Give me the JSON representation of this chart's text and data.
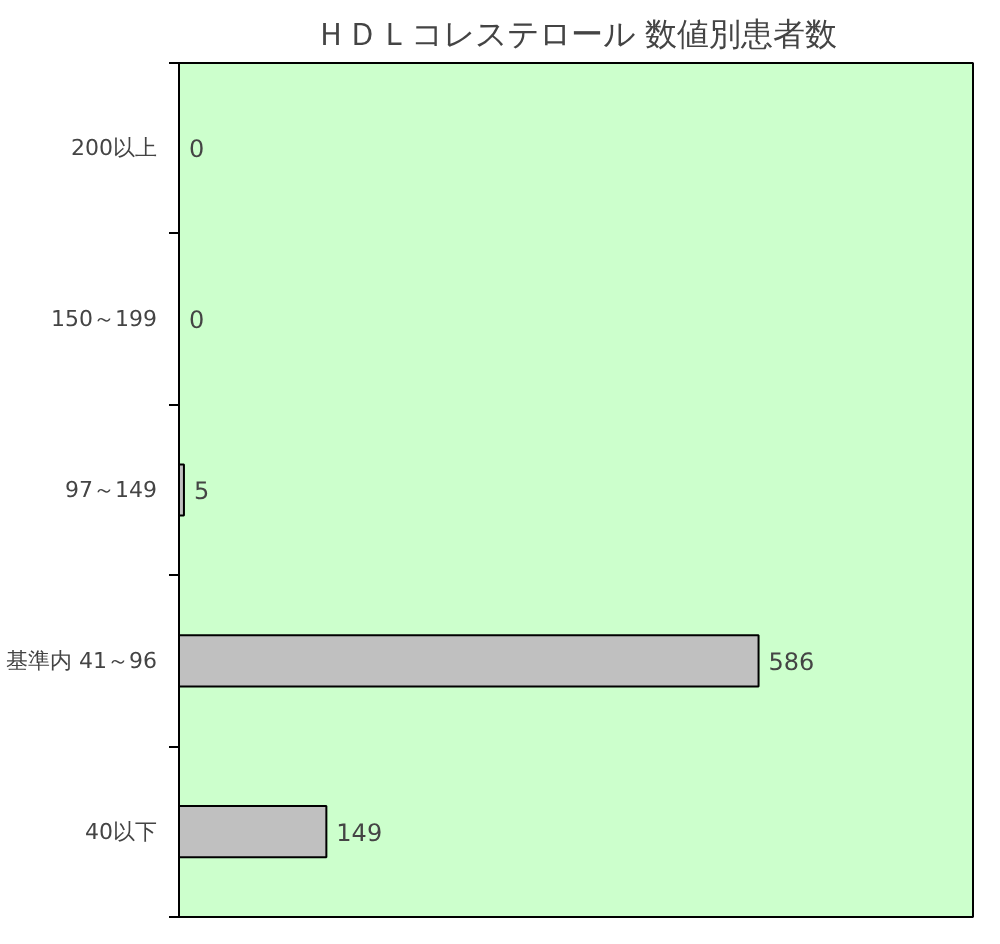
{
  "chart_data": {
    "type": "bar",
    "orientation": "horizontal",
    "title": "ＨＤＬコレステロール 数値別患者数",
    "categories": [
      "200以上",
      "150～199",
      "97～149",
      "基準内 41～96",
      "40以下"
    ],
    "values": [
      0,
      0,
      5,
      586,
      149
    ],
    "color": "#c0c0c0",
    "data_labels": true,
    "grid": false
  }
}
